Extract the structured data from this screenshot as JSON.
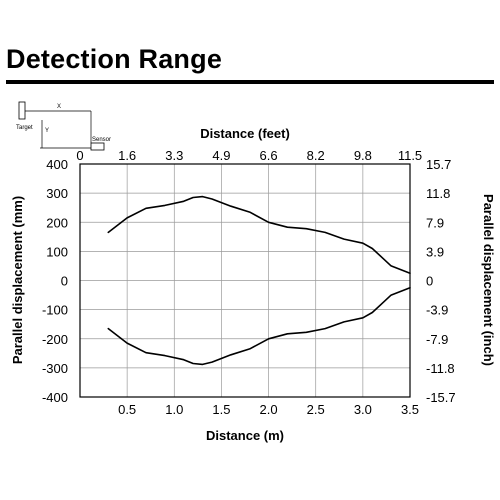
{
  "page": {
    "title": "Detection Range"
  },
  "diagram": {
    "target_label": "Target",
    "sensor_label": "Sensor",
    "x_label": "X",
    "y_label": "Y"
  },
  "chart_data": {
    "type": "line",
    "title": "",
    "xlabel": "Distance (m)",
    "x2label": "Distance (feet)",
    "ylabel": "Parallel displacement (mm)",
    "y2label": "Parallel displacement (inch)",
    "xlim": [
      0,
      3.5
    ],
    "ylim": [
      -400,
      400
    ],
    "grid": true,
    "x_ticks": [
      "0.5",
      "1.0",
      "1.5",
      "2.0",
      "2.5",
      "3.0",
      "3.5"
    ],
    "x2_ticks": [
      "0",
      "1.6",
      "3.3",
      "4.9",
      "6.6",
      "8.2",
      "9.8",
      "11.5"
    ],
    "y_ticks": [
      "400",
      "300",
      "200",
      "100",
      "0",
      "-100",
      "-200",
      "-300",
      "-400"
    ],
    "y2_ticks": [
      "15.7",
      "11.8",
      "7.9",
      "3.9",
      "0",
      "-3.9",
      "-7.9",
      "-11.8",
      "-15.7"
    ],
    "series": [
      {
        "x": [
          0.3,
          0.5,
          0.7,
          0.9,
          1.1,
          1.2,
          1.3,
          1.4,
          1.6,
          1.8,
          2.0,
          2.2,
          2.4,
          2.6,
          2.8,
          3.0,
          3.1,
          3.2,
          3.3,
          3.5
        ],
        "values": [
          165,
          215,
          248,
          258,
          272,
          285,
          288,
          280,
          255,
          235,
          200,
          183,
          178,
          165,
          142,
          128,
          110,
          80,
          50,
          25
        ]
      },
      {
        "x": [
          0.3,
          0.5,
          0.7,
          0.9,
          1.1,
          1.2,
          1.3,
          1.4,
          1.6,
          1.8,
          2.0,
          2.2,
          2.4,
          2.6,
          2.8,
          3.0,
          3.1,
          3.2,
          3.3,
          3.5
        ],
        "values": [
          -165,
          -215,
          -248,
          -258,
          -272,
          -285,
          -288,
          -280,
          -255,
          -235,
          -200,
          -183,
          -178,
          -165,
          -142,
          -128,
          -110,
          -80,
          -50,
          -25
        ]
      }
    ]
  }
}
